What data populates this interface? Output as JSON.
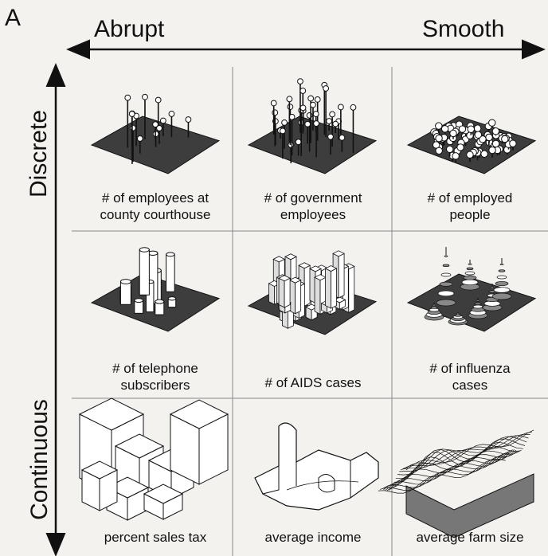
{
  "figure": {
    "panel_label": "A",
    "x_axis": {
      "left": "Abrupt",
      "right": "Smooth"
    },
    "y_axis": {
      "top": "Discrete",
      "bottom": "Continuous"
    }
  },
  "cells": [
    {
      "id": "r1c1",
      "line1": "# of employees at",
      "line2": "county courthouse",
      "kind": "pins-sparse"
    },
    {
      "id": "r1c2",
      "line1": "# of government",
      "line2": "employees",
      "kind": "pins-clustered"
    },
    {
      "id": "r1c3",
      "line1": "# of employed",
      "line2": "people",
      "kind": "dots-dense"
    },
    {
      "id": "r2c1",
      "line1": "# of telephone",
      "line2": "subscribers",
      "kind": "cylinders"
    },
    {
      "id": "r2c2",
      "line1": "# of AIDS cases",
      "line2": "",
      "kind": "prisms"
    },
    {
      "id": "r2c3",
      "line1": "# of influenza",
      "line2": "cases",
      "kind": "cones"
    },
    {
      "id": "r3c1",
      "line1": "percent sales tax",
      "line2": "",
      "kind": "step-blocks"
    },
    {
      "id": "r3c2",
      "line1": "average income",
      "line2": "",
      "kind": "smooth-blocks"
    },
    {
      "id": "r3c3",
      "line1": "average farm size",
      "line2": "",
      "kind": "surface-mesh"
    }
  ],
  "colors": {
    "plate": "#3d3d3d",
    "line": "#111111",
    "grid": "#888888",
    "fill": "#ffffff"
  }
}
